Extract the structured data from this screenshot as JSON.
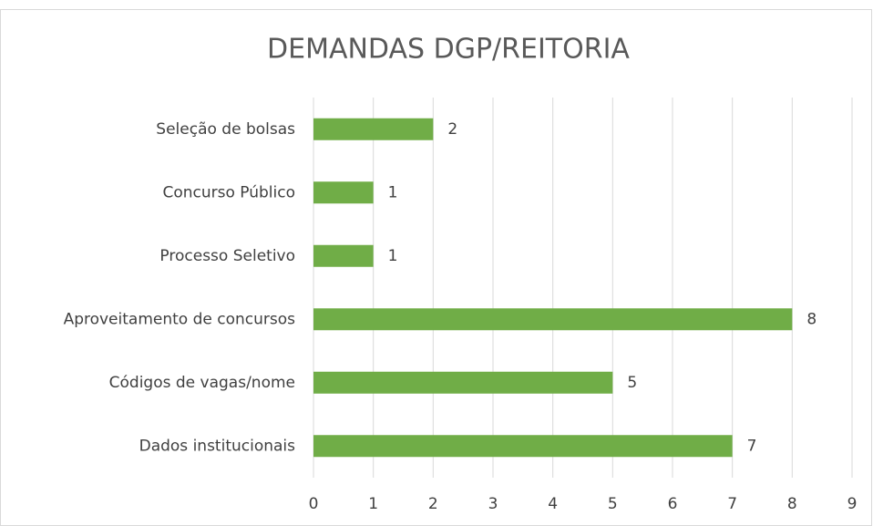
{
  "chart_data": {
    "type": "bar",
    "orientation": "horizontal",
    "title": "DEMANDAS DGP/REITORIA",
    "categories": [
      "Seleção de bolsas",
      "Concurso Público",
      "Processo Seletivo",
      "Aproveitamento de concursos",
      "Códigos de vagas/nome",
      "Dados institucionais"
    ],
    "values": [
      2,
      1,
      1,
      8,
      5,
      7
    ],
    "color": "#70ad47",
    "xlim": [
      0,
      9
    ],
    "xticks": [
      0,
      1,
      2,
      3,
      4,
      5,
      6,
      7,
      8,
      9
    ],
    "grid": true
  }
}
